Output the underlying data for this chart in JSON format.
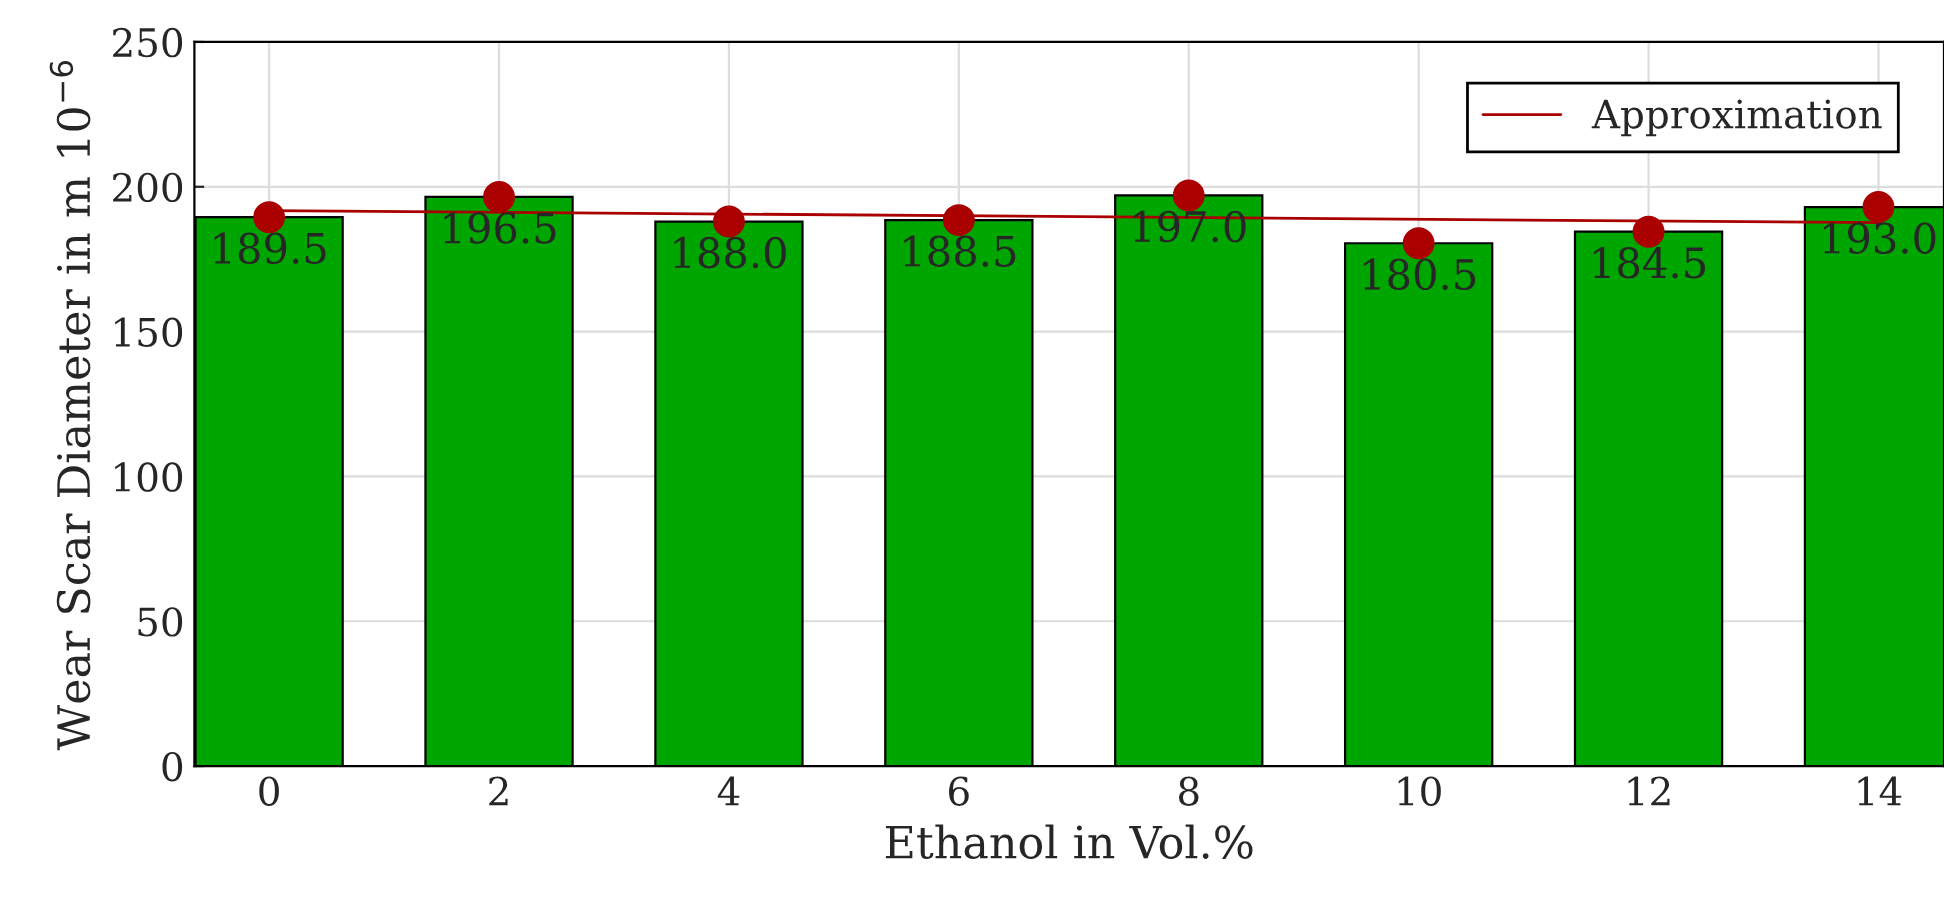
{
  "chart_data": {
    "type": "bar",
    "xlabel": "Ethanol in Vol.%",
    "ylabel": "Wear Scar Diameter in m 10$^{−6}$",
    "x": [
      0,
      2,
      4,
      6,
      8,
      10,
      12,
      14
    ],
    "series": [
      {
        "color": "#00a600",
        "values": [
          189.5,
          196.5,
          188.0,
          188.5,
          197.0,
          180.5,
          184.5,
          193.0
        ],
        "value_labels": [
          "189.5",
          "196.5",
          "188.0",
          "188.5",
          "197.0",
          "180.5",
          "184.5",
          "193.0"
        ]
      },
      {
        "type": "scatter",
        "color": "#aa0000",
        "marker": "circle",
        "values": [
          189.5,
          196.5,
          188.0,
          188.5,
          197.0,
          180.5,
          184.5,
          193.0
        ]
      },
      {
        "type": "line",
        "name": "Approximation",
        "color": "#aa0000",
        "x": [
          0,
          14
        ],
        "values": [
          191.8,
          187.6
        ]
      }
    ],
    "xlim": [
      -0.65,
      14.57
    ],
    "xticks": [
      0,
      2,
      4,
      6,
      8,
      10,
      12,
      14
    ],
    "ylim": [
      0,
      250
    ],
    "yticks": [
      0,
      50,
      100,
      150,
      200,
      250
    ],
    "grid": true,
    "legend": "top right"
  }
}
